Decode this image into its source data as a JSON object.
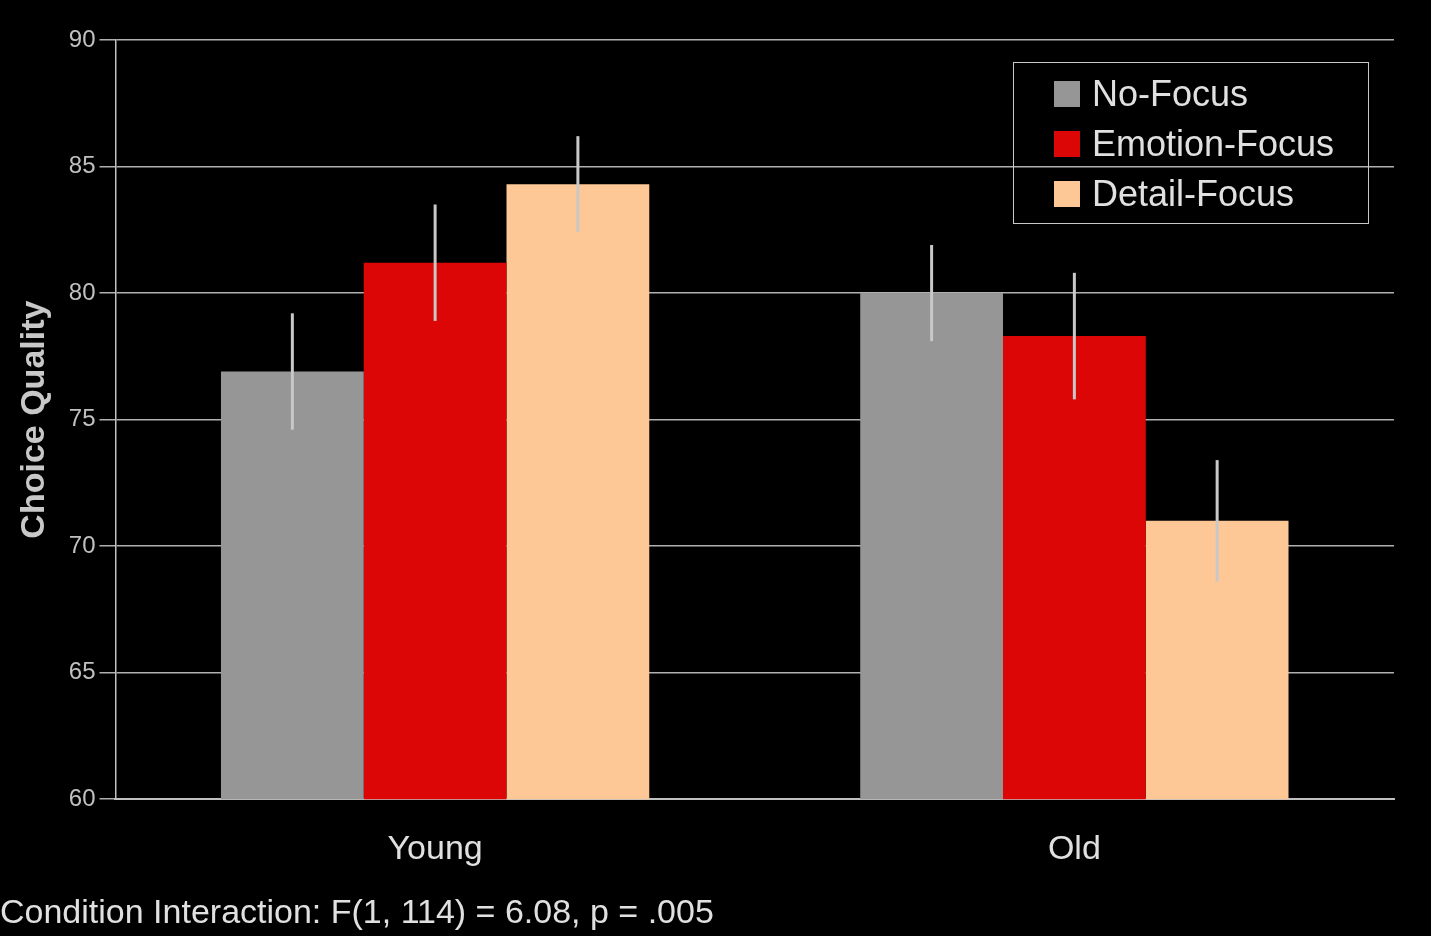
{
  "chart_data": {
    "type": "bar",
    "ylabel": "Choice Quality",
    "categories": [
      "Young",
      "Old"
    ],
    "series": [
      {
        "name": "No-Focus",
        "color": "#969696",
        "values": [
          76.9,
          80.0
        ],
        "errors": [
          2.3,
          1.9
        ]
      },
      {
        "name": "Emotion-Focus",
        "color": "#dd0606",
        "values": [
          81.2,
          78.3
        ],
        "errors": [
          2.3,
          2.5
        ]
      },
      {
        "name": "Detail-Focus",
        "color": "#fdc896",
        "values": [
          84.3,
          71.0
        ],
        "errors": [
          1.9,
          2.4
        ]
      }
    ],
    "ylim": [
      60,
      90
    ],
    "yticks": [
      60,
      65,
      70,
      75,
      80,
      85,
      90
    ],
    "grid": "y",
    "legend": "top right",
    "annotations": [
      "Condition Interaction: F(1, 114) = 6.08, p = .005"
    ]
  }
}
